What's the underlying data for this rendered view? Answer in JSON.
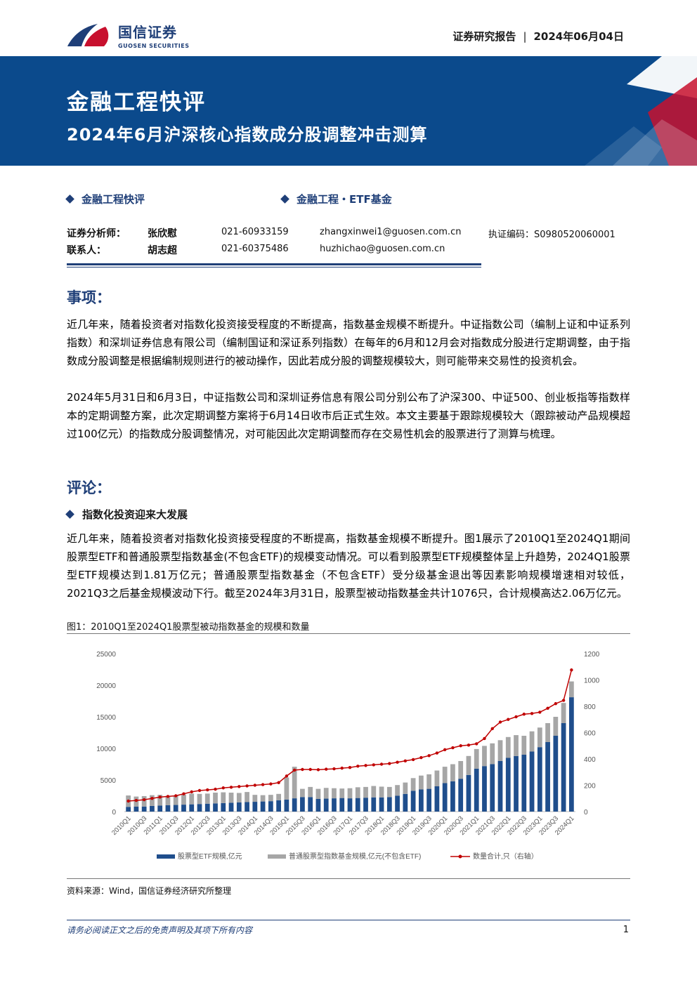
{
  "header": {
    "logo_cn": "国信证券",
    "logo_en": "GUOSEN SECURITIES",
    "report_type": "证券研究报告",
    "date": "2024年06月04日"
  },
  "banner": {
    "title": "金融工程快评",
    "subtitle": "2024年6月沪深核心指数成分股调整冲击测算"
  },
  "tags": [
    "金融工程快评",
    "金融工程・ETF基金"
  ],
  "contacts": [
    {
      "role": "证券分析师：",
      "name": "张欣慰",
      "phone": "021-60933159",
      "email": "zhangxinwei1@guosen.com.cn",
      "cert": "执证编码：S0980520060001"
    },
    {
      "role": "联系人：",
      "name": "胡志超",
      "phone": "021-60375486",
      "email": "huzhichao@guosen.com.cn",
      "cert": ""
    }
  ],
  "sections": {
    "events_title": "事项：",
    "events_p1": "近几年来，随着投资者对指数化投资接受程度的不断提高，指数基金规模不断提升。中证指数公司（编制上证和中证系列指数）和深圳证券信息有限公司（编制国证和深证系列指数）在每年的6月和12月会对指数成分股进行定期调整，由于指数成分股调整是根据编制规则进行的被动操作，因此若成分股的调整规模较大，则可能带来交易性的投资机会。",
    "events_p2": "2024年5月31日和6月3日，中证指数公司和深圳证券信息有限公司分别公布了沪深300、中证500、创业板指等指数样本的定期调整方案，此次定期调整方案将于6月14日收市后正式生效。本文主要基于跟踪规模较大（跟踪被动产品规模超过100亿元）的指数成分股调整情况，对可能因此次定期调整而存在交易性机会的股票进行了测算与梳理。",
    "comment_title": "评论：",
    "comment_sub": "指数化投资迎来大发展",
    "comment_p1": "近几年来，随着投资者对指数化投资接受程度的不断提高，指数基金规模不断提升。图1展示了2010Q1至2024Q1期间股票型ETF和普通股票型指数基金(不包含ETF)的规模变动情况。可以看到股票型ETF规模整体呈上升趋势，2024Q1股票型ETF规模达到1.81万亿元；普通股票型指数基金（不包含ETF）受分级基金退出等因素影响规模增速相对较低，2021Q3之后基金规模波动下行。截至2024年3月31日，股票型被动指数基金共计1076只，合计规模高达2.06万亿元。"
  },
  "figure": {
    "caption": "图1：2010Q1至2024Q1股票型被动指数基金的规模和数量",
    "source": "资料来源：Wind，国信证券经济研究所整理"
  },
  "chart_data": {
    "type": "bar",
    "categories": [
      "2010Q1",
      "2010Q2",
      "2010Q3",
      "2010Q4",
      "2011Q1",
      "2011Q2",
      "2011Q3",
      "2011Q4",
      "2012Q1",
      "2012Q2",
      "2012Q3",
      "2012Q4",
      "2013Q1",
      "2013Q2",
      "2013Q3",
      "2013Q4",
      "2014Q1",
      "2014Q2",
      "2014Q3",
      "2014Q4",
      "2015Q1",
      "2015Q2",
      "2015Q3",
      "2015Q4",
      "2016Q1",
      "2016Q2",
      "2016Q3",
      "2016Q4",
      "2017Q1",
      "2017Q2",
      "2017Q3",
      "2017Q4",
      "2018Q1",
      "2018Q2",
      "2018Q3",
      "2018Q4",
      "2019Q1",
      "2019Q2",
      "2019Q3",
      "2019Q4",
      "2020Q1",
      "2020Q2",
      "2020Q3",
      "2020Q4",
      "2021Q1",
      "2021Q2",
      "2021Q3",
      "2021Q4",
      "2022Q1",
      "2022Q2",
      "2022Q3",
      "2022Q4",
      "2023Q1",
      "2023Q2",
      "2023Q3",
      "2023Q4",
      "2024Q1"
    ],
    "tick_labels": [
      "2010Q1",
      "2010Q3",
      "2011Q1",
      "2011Q3",
      "2012Q1",
      "2012Q3",
      "2013Q1",
      "2013Q3",
      "2014Q1",
      "2014Q3",
      "2015Q1",
      "2015Q3",
      "2016Q1",
      "2016Q3",
      "2017Q1",
      "2017Q3",
      "2018Q1",
      "2018Q3",
      "2019Q1",
      "2019Q3",
      "2020Q1",
      "2020Q3",
      "2021Q1",
      "2021Q3",
      "2022Q1",
      "2022Q3",
      "2023Q1",
      "2023Q3",
      "2024Q1"
    ],
    "series": [
      {
        "name": "股票型ETF规模,亿元",
        "color": "#1f4e8c",
        "values": [
          750,
          780,
          800,
          900,
          950,
          1000,
          1050,
          1100,
          1150,
          1200,
          1250,
          1300,
          1350,
          1400,
          1450,
          1500,
          1550,
          1600,
          1650,
          1800,
          1900,
          2100,
          2300,
          2300,
          2000,
          2050,
          2100,
          2150,
          2100,
          2150,
          2200,
          2250,
          2250,
          2300,
          2500,
          2800,
          3300,
          3500,
          3600,
          4000,
          4500,
          4800,
          5200,
          5800,
          6800,
          7200,
          7500,
          8000,
          8500,
          8800,
          9000,
          9500,
          10200,
          11000,
          12000,
          14000,
          18100
        ]
      },
      {
        "name": "普通股票型指数基金规模,亿元(不包含ETF)",
        "color": "#a6a6a6",
        "values": [
          1800,
          1600,
          1650,
          1700,
          1700,
          1500,
          1500,
          1600,
          1700,
          1600,
          1600,
          1700,
          1700,
          1600,
          1500,
          1600,
          1100,
          1000,
          1000,
          1000,
          3500,
          5000,
          1300,
          1600,
          1600,
          1700,
          1600,
          1500,
          1600,
          1700,
          1700,
          1800,
          1700,
          1600,
          1700,
          1800,
          2000,
          2200,
          2300,
          2500,
          2600,
          2700,
          2800,
          3000,
          3100,
          3200,
          3300,
          3300,
          3300,
          3300,
          3000,
          3200,
          3100,
          3000,
          3000,
          3200,
          2500
        ]
      },
      {
        "name": "数量合计,只（右轴）",
        "color": "#c00000",
        "values": [
          80,
          85,
          90,
          100,
          110,
          115,
          120,
          135,
          150,
          160,
          165,
          170,
          180,
          185,
          190,
          195,
          200,
          205,
          210,
          220,
          270,
          315,
          320,
          320,
          318,
          322,
          325,
          330,
          335,
          345,
          350,
          355,
          360,
          365,
          375,
          385,
          395,
          410,
          425,
          445,
          470,
          485,
          500,
          505,
          515,
          555,
          630,
          680,
          700,
          720,
          740,
          745,
          755,
          785,
          820,
          845,
          1076
        ]
      }
    ],
    "ylim_left": [
      0,
      25000
    ],
    "yticks_left": [
      0,
      5000,
      10000,
      15000,
      20000,
      25000
    ],
    "ylim_right": [
      0,
      1200
    ],
    "yticks_right": [
      0,
      200,
      400,
      600,
      800,
      1000,
      1200
    ],
    "legend": "bottom"
  },
  "footer": {
    "disclaimer": "请务必阅读正文之后的免责声明及其项下所有内容",
    "page": "1"
  }
}
